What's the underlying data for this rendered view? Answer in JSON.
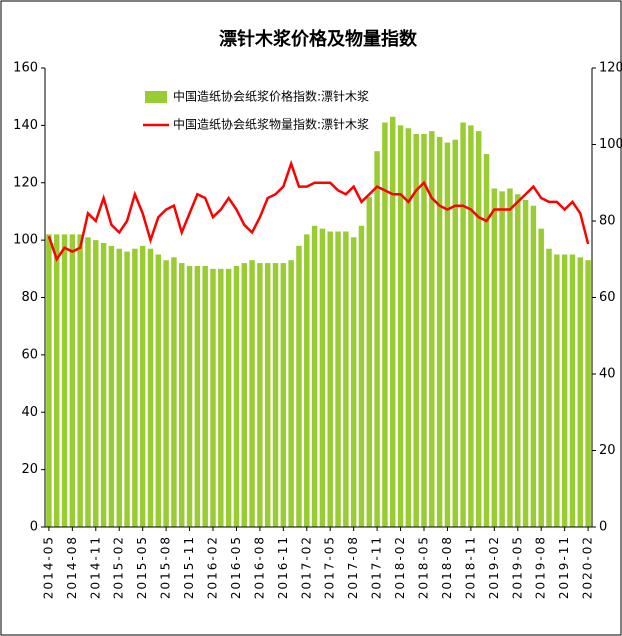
{
  "chart_data": {
    "type": "bar_line",
    "title": "漂针木浆价格及物量指数",
    "categories": [
      "2014-05",
      null,
      null,
      "2014-08",
      null,
      null,
      "2014-11",
      null,
      null,
      "2015-02",
      null,
      null,
      "2015-05",
      null,
      null,
      "2015-08",
      null,
      null,
      "2015-11",
      null,
      null,
      "2016-02",
      null,
      null,
      "2016-05",
      null,
      null,
      "2016-08",
      null,
      null,
      "2016-11",
      null,
      null,
      "2017-02",
      null,
      null,
      "2017-05",
      null,
      null,
      "2017-08",
      null,
      null,
      "2017-11",
      null,
      null,
      "2018-02",
      null,
      null,
      "2018-05",
      null,
      null,
      "2018-08",
      null,
      null,
      "2018-11",
      null,
      null,
      "2019-02",
      null,
      null,
      "2019-05",
      null,
      null,
      "2019-08",
      null,
      null,
      "2019-11",
      null,
      null,
      "2020-02"
    ],
    "series": [
      {
        "name": "中国造纸协会纸浆价格指数:漂针木浆",
        "type": "bar",
        "color": "#99cc33",
        "values": [
          102,
          102,
          102,
          102,
          102,
          101,
          100,
          99,
          98,
          97,
          96,
          97,
          98,
          97,
          95,
          93,
          94,
          92,
          91,
          91,
          91,
          90,
          90,
          90,
          91,
          92,
          93,
          92,
          92,
          92,
          92,
          93,
          98,
          102,
          105,
          104,
          103,
          103,
          103,
          101,
          105,
          115,
          131,
          141,
          143,
          140,
          139,
          137,
          137,
          138,
          136,
          134,
          135,
          141,
          140,
          138,
          130,
          118,
          117,
          118,
          116,
          114,
          112,
          104,
          97,
          95,
          95,
          95,
          94,
          93
        ]
      },
      {
        "name": "中国造纸协会纸浆物量指数:漂针木浆",
        "type": "line",
        "axis": "y2",
        "color": "#ff0000",
        "values": [
          76,
          70,
          73,
          72,
          73,
          82,
          80,
          86,
          79,
          77,
          80,
          87,
          82,
          75,
          81,
          83,
          84,
          77,
          82,
          87,
          86,
          81,
          83,
          86,
          83,
          79,
          77,
          81,
          86,
          87,
          89,
          95,
          89,
          89,
          90,
          90,
          90,
          88,
          87,
          89,
          85,
          87,
          89,
          88,
          87,
          87,
          85,
          88,
          90,
          86,
          84,
          83,
          84,
          84,
          83,
          81,
          80,
          83,
          83,
          83,
          85,
          87,
          89,
          86,
          85,
          85,
          83,
          85,
          82,
          74
        ]
      }
    ],
    "ylim": [
      0,
      160
    ],
    "yticks": [
      0,
      20,
      40,
      60,
      80,
      100,
      120,
      140,
      160
    ],
    "y2lim": [
      0,
      120
    ],
    "y2ticks": [
      0,
      20,
      40,
      60,
      80,
      100,
      120
    ],
    "legend": "top-left"
  }
}
